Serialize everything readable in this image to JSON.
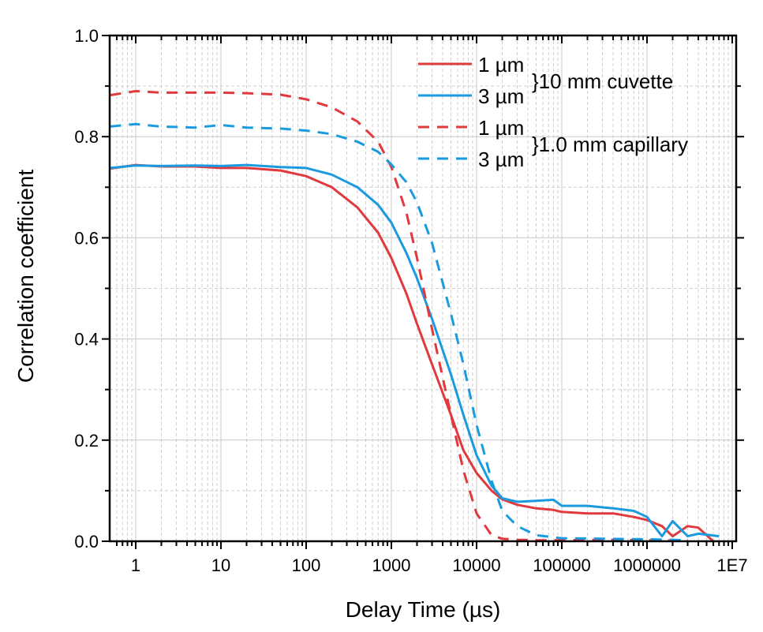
{
  "chart_data": {
    "type": "line",
    "title": "",
    "xlabel": "Delay Time (µs)",
    "ylabel": "Correlation coefficient",
    "xscale": "log",
    "xlim": [
      0.5,
      11000000
    ],
    "ylim": [
      0.0,
      1.0
    ],
    "grid": true,
    "x_tick_values": [
      1,
      10,
      100,
      1000,
      10000,
      100000,
      1000000,
      10000000
    ],
    "x_tick_labels": [
      "1",
      "10",
      "100",
      "1000",
      "10000",
      "100000",
      "1000000",
      "1E7"
    ],
    "y_tick_values": [
      0.0,
      0.2,
      0.4,
      0.6,
      0.8,
      1.0
    ],
    "y_tick_labels": [
      "0.0",
      "0.2",
      "0.4",
      "0.6",
      "0.8",
      "1.0"
    ],
    "legend": {
      "placement": "top-right",
      "entries": [
        {
          "label": "1 µm",
          "series": 0
        },
        {
          "label": "3 µm",
          "series": 1
        },
        {
          "label": "1 µm",
          "series": 2
        },
        {
          "label": "3 µm",
          "series": 3
        }
      ],
      "groups": [
        {
          "label": "}10 mm cuvette",
          "series": [
            0,
            1
          ]
        },
        {
          "label": "}1.0 mm capillary",
          "series": [
            2,
            3
          ]
        }
      ]
    },
    "series": [
      {
        "name": "1 µm, 10 mm cuvette",
        "color": "#e0393e",
        "dash": "solid",
        "x": [
          0.5,
          1,
          2,
          5,
          10,
          20,
          50,
          100,
          200,
          400,
          700,
          1000,
          1500,
          2000,
          3000,
          5000,
          7000,
          10000,
          15000,
          20000,
          30000,
          50000,
          80000,
          100000,
          200000,
          400000,
          700000,
          1000000,
          1500000,
          2000000,
          3000000,
          4000000,
          6000000
        ],
        "y": [
          0.737,
          0.744,
          0.741,
          0.741,
          0.738,
          0.738,
          0.733,
          0.722,
          0.7,
          0.66,
          0.61,
          0.56,
          0.49,
          0.43,
          0.35,
          0.25,
          0.18,
          0.135,
          0.1,
          0.083,
          0.072,
          0.065,
          0.062,
          0.058,
          0.055,
          0.055,
          0.048,
          0.042,
          0.03,
          0.01,
          0.03,
          0.027,
          0.0
        ]
      },
      {
        "name": "3 µm, 10 mm cuvette",
        "color": "#1a9be0",
        "dash": "solid",
        "x": [
          0.5,
          1,
          2,
          5,
          10,
          20,
          50,
          100,
          200,
          400,
          700,
          1000,
          1500,
          2000,
          3000,
          5000,
          7000,
          10000,
          15000,
          20000,
          30000,
          50000,
          80000,
          100000,
          200000,
          400000,
          700000,
          1000000,
          1500000,
          2000000,
          3000000,
          4000000,
          7000000
        ],
        "y": [
          0.738,
          0.743,
          0.742,
          0.743,
          0.742,
          0.744,
          0.74,
          0.738,
          0.725,
          0.7,
          0.665,
          0.63,
          0.57,
          0.52,
          0.44,
          0.33,
          0.25,
          0.17,
          0.11,
          0.085,
          0.078,
          0.08,
          0.082,
          0.07,
          0.07,
          0.065,
          0.06,
          0.048,
          0.01,
          0.04,
          0.01,
          0.015,
          0.01
        ]
      },
      {
        "name": "1 µm, 1.0 mm capillary",
        "color": "#e0393e",
        "dash": "dashed",
        "x": [
          0.5,
          1,
          2,
          5,
          10,
          20,
          50,
          100,
          200,
          400,
          700,
          1000,
          1500,
          2000,
          3000,
          5000,
          7000,
          10000,
          15000,
          20000,
          30000,
          50000,
          100000,
          300000,
          1000000,
          3000000
        ],
        "y": [
          0.882,
          0.89,
          0.887,
          0.887,
          0.887,
          0.886,
          0.883,
          0.874,
          0.858,
          0.83,
          0.79,
          0.74,
          0.65,
          0.56,
          0.42,
          0.25,
          0.14,
          0.055,
          0.012,
          0.005,
          0.003,
          0.002,
          0.002,
          0.003,
          0.002,
          0.001
        ]
      },
      {
        "name": "3 µm, 1.0 mm capillary",
        "color": "#1a9be0",
        "dash": "dashed",
        "x": [
          0.5,
          1,
          2,
          5,
          10,
          20,
          50,
          100,
          200,
          400,
          700,
          1000,
          1500,
          2000,
          3000,
          5000,
          7000,
          10000,
          15000,
          20000,
          30000,
          50000,
          100000,
          300000,
          1000000,
          3000000
        ],
        "y": [
          0.82,
          0.825,
          0.82,
          0.818,
          0.823,
          0.818,
          0.816,
          0.812,
          0.805,
          0.79,
          0.77,
          0.745,
          0.71,
          0.67,
          0.59,
          0.45,
          0.35,
          0.23,
          0.12,
          0.06,
          0.03,
          0.012,
          0.006,
          0.005,
          0.004,
          0.002
        ]
      }
    ]
  }
}
